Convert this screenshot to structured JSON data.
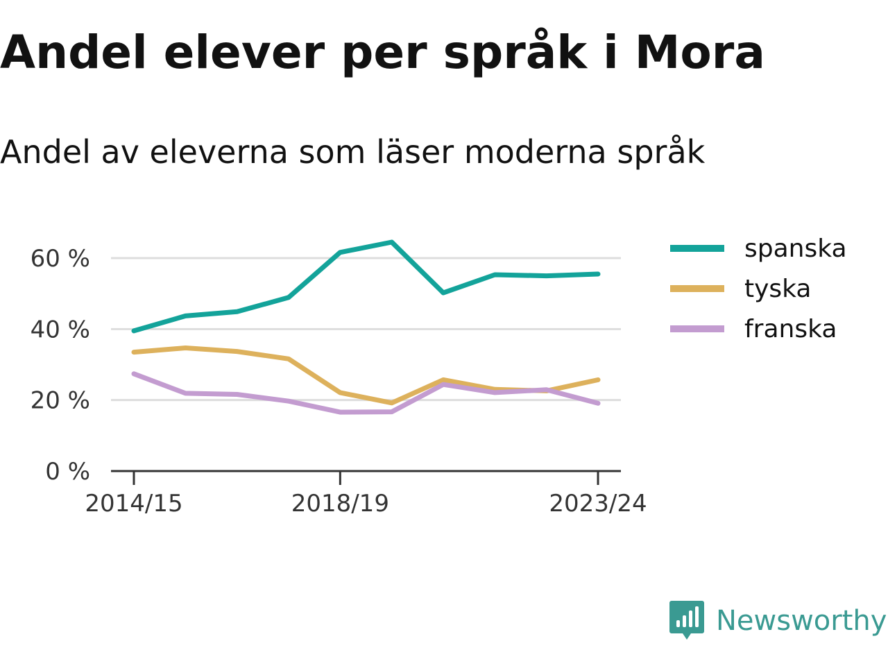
{
  "title": "Andel elever per språk i Mora",
  "subtitle": "Andel av eleverna som läser moderna språk",
  "brand": {
    "name": "Newsworthy",
    "icon": "newsworthy-logo-icon",
    "color": "#3a9a92"
  },
  "chart_data": {
    "type": "line",
    "x": [
      "2014/15",
      "2015/16",
      "2016/17",
      "2017/18",
      "2018/19",
      "2019/20",
      "2020/21",
      "2021/22",
      "2022/23",
      "2023/24"
    ],
    "x_ticks": [
      "2014/15",
      "2018/19",
      "2023/24"
    ],
    "y_ticks": [
      "0 %",
      "20 %",
      "40 %",
      "60 %"
    ],
    "y_tick_values": [
      0,
      20,
      40,
      60
    ],
    "ylim": [
      0,
      70
    ],
    "grid": true,
    "legend_position": "right",
    "series": [
      {
        "name": "spanska",
        "color": "#13a39a",
        "values": [
          39.5,
          43.7,
          44.9,
          48.9,
          61.6,
          64.5,
          50.2,
          55.3,
          55.0,
          55.5
        ]
      },
      {
        "name": "tyska",
        "color": "#ddb15c",
        "values": [
          33.5,
          34.7,
          33.7,
          31.6,
          22.1,
          19.2,
          25.7,
          23.0,
          22.6,
          25.7
        ]
      },
      {
        "name": "franska",
        "color": "#c39cd0",
        "values": [
          27.4,
          21.9,
          21.6,
          19.7,
          16.6,
          16.7,
          24.4,
          22.1,
          22.9,
          19.1
        ]
      }
    ]
  }
}
